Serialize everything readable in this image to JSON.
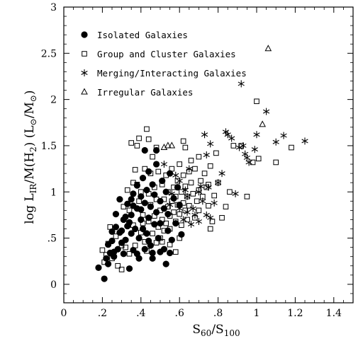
{
  "chart_data": {
    "type": "scatter",
    "title": "",
    "xlabel": "S60/S100",
    "ylabel": "log LIR/M(H2) (L⊙/M⊙)",
    "xlim": [
      0,
      1.5
    ],
    "ylim": [
      -0.2,
      3
    ],
    "x_ticks": [
      0,
      0.2,
      0.4,
      0.6,
      0.8,
      1,
      1.2,
      1.4
    ],
    "x_tick_labels": [
      "0",
      ".2",
      ".4",
      ".6",
      ".8",
      "1",
      "1.2",
      "1.4"
    ],
    "y_ticks": [
      0,
      0.5,
      1,
      1.5,
      2,
      2.5,
      3
    ],
    "y_tick_labels": [
      "0",
      ".5",
      "1",
      "1.5",
      "2",
      "2.5",
      "3"
    ],
    "grid": false,
    "legend_position": "top-left",
    "series": [
      {
        "name": "Isolated Galaxies",
        "marker": "filled-circle",
        "points": [
          [
            0.18,
            0.18
          ],
          [
            0.21,
            0.06
          ],
          [
            0.22,
            0.28
          ],
          [
            0.23,
            0.22
          ],
          [
            0.24,
            0.34
          ],
          [
            0.25,
            0.47
          ],
          [
            0.26,
            0.35
          ],
          [
            0.27,
            0.62
          ],
          [
            0.28,
            0.38
          ],
          [
            0.3,
            0.45
          ],
          [
            0.29,
            0.56
          ],
          [
            0.31,
            0.7
          ],
          [
            0.32,
            0.48
          ],
          [
            0.33,
            0.63
          ],
          [
            0.33,
            0.87
          ],
          [
            0.34,
            0.17
          ],
          [
            0.35,
            0.55
          ],
          [
            0.35,
            0.75
          ],
          [
            0.35,
            0.92
          ],
          [
            0.36,
            0.37
          ],
          [
            0.37,
            0.6
          ],
          [
            0.38,
            0.82
          ],
          [
            0.38,
            1.07
          ],
          [
            0.39,
            0.28
          ],
          [
            0.39,
            0.5
          ],
          [
            0.4,
            0.7
          ],
          [
            0.4,
            0.95
          ],
          [
            0.41,
            1.15
          ],
          [
            0.42,
            0.38
          ],
          [
            0.42,
            0.88
          ],
          [
            0.43,
            0.55
          ],
          [
            0.43,
            1.02
          ],
          [
            0.44,
            0.72
          ],
          [
            0.44,
            1.22
          ],
          [
            0.45,
            0.42
          ],
          [
            0.45,
            0.84
          ],
          [
            0.46,
            1.08
          ],
          [
            0.46,
            0.28
          ],
          [
            0.47,
            0.65
          ],
          [
            0.47,
            0.97
          ],
          [
            0.48,
            0.78
          ],
          [
            0.48,
            1.3
          ],
          [
            0.49,
            0.5
          ],
          [
            0.5,
            0.9
          ],
          [
            0.5,
            0.66
          ],
          [
            0.51,
            1.12
          ],
          [
            0.52,
            0.38
          ],
          [
            0.52,
            0.82
          ],
          [
            0.53,
            1.0
          ],
          [
            0.54,
            0.58
          ],
          [
            0.54,
            0.76
          ],
          [
            0.55,
            1.2
          ],
          [
            0.56,
            0.48
          ],
          [
            0.57,
            0.93
          ],
          [
            0.58,
            0.66
          ],
          [
            0.59,
            1.05
          ],
          [
            0.6,
            0.86
          ],
          [
            0.61,
            0.54
          ],
          [
            0.27,
            0.76
          ],
          [
            0.25,
            0.57
          ],
          [
            0.29,
            0.92
          ],
          [
            0.31,
            0.33
          ],
          [
            0.36,
            0.98
          ],
          [
            0.34,
            0.67
          ],
          [
            0.41,
            0.6
          ],
          [
            0.44,
            0.47
          ],
          [
            0.42,
            1.45
          ],
          [
            0.38,
            0.33
          ],
          [
            0.23,
            0.43
          ],
          [
            0.26,
            0.3
          ],
          [
            0.46,
            0.34
          ],
          [
            0.5,
            0.35
          ],
          [
            0.53,
            0.22
          ],
          [
            0.48,
            1.45
          ],
          [
            0.4,
            0.81
          ],
          [
            0.32,
            0.73
          ],
          [
            0.36,
            0.85
          ],
          [
            0.3,
            0.58
          ],
          [
            0.55,
            0.34
          ]
        ]
      },
      {
        "name": "Group and Cluster Galaxies",
        "marker": "open-square",
        "points": [
          [
            0.2,
            0.37
          ],
          [
            0.21,
            0.24
          ],
          [
            0.22,
            0.32
          ],
          [
            0.23,
            0.44
          ],
          [
            0.25,
            0.28
          ],
          [
            0.27,
            0.52
          ],
          [
            0.28,
            0.2
          ],
          [
            0.3,
            0.16
          ],
          [
            0.32,
            0.4
          ],
          [
            0.34,
            0.33
          ],
          [
            0.36,
            0.64
          ],
          [
            0.37,
            0.42
          ],
          [
            0.38,
            1.08
          ],
          [
            0.39,
            0.9
          ],
          [
            0.4,
            0.56
          ],
          [
            0.4,
            1.0
          ],
          [
            0.41,
            0.75
          ],
          [
            0.42,
            1.25
          ],
          [
            0.42,
            0.46
          ],
          [
            0.43,
            0.36
          ],
          [
            0.44,
            0.98
          ],
          [
            0.44,
            0.68
          ],
          [
            0.45,
            1.2
          ],
          [
            0.45,
            0.86
          ],
          [
            0.46,
            0.55
          ],
          [
            0.46,
            1.38
          ],
          [
            0.47,
            0.74
          ],
          [
            0.47,
            1.05
          ],
          [
            0.48,
            0.45
          ],
          [
            0.48,
            0.92
          ],
          [
            0.49,
            0.62
          ],
          [
            0.49,
            1.22
          ],
          [
            0.5,
            0.8
          ],
          [
            0.5,
            0.5
          ],
          [
            0.51,
            1.08
          ],
          [
            0.51,
            0.7
          ],
          [
            0.52,
            0.92
          ],
          [
            0.52,
            0.58
          ],
          [
            0.53,
            1.18
          ],
          [
            0.53,
            0.66
          ],
          [
            0.54,
            0.84
          ],
          [
            0.54,
            1.0
          ],
          [
            0.55,
            0.74
          ],
          [
            0.55,
            0.6
          ],
          [
            0.56,
            1.25
          ],
          [
            0.56,
            0.9
          ],
          [
            0.57,
            0.78
          ],
          [
            0.57,
            1.05
          ],
          [
            0.58,
            0.68
          ],
          [
            0.58,
            0.95
          ],
          [
            0.59,
            0.86
          ],
          [
            0.59,
            1.12
          ],
          [
            0.6,
            0.76
          ],
          [
            0.6,
            1.3
          ],
          [
            0.61,
            1.0
          ],
          [
            0.61,
            0.64
          ],
          [
            0.62,
            0.88
          ],
          [
            0.62,
            1.18
          ],
          [
            0.63,
            0.8
          ],
          [
            0.63,
            1.06
          ],
          [
            0.64,
            0.7
          ],
          [
            0.64,
            0.95
          ],
          [
            0.65,
            1.22
          ],
          [
            0.65,
            0.85
          ],
          [
            0.66,
            1.1
          ],
          [
            0.67,
            0.98
          ],
          [
            0.68,
            1.25
          ],
          [
            0.68,
            0.72
          ],
          [
            0.69,
            0.9
          ],
          [
            0.7,
            1.02
          ],
          [
            0.7,
            1.38
          ],
          [
            0.71,
            1.12
          ],
          [
            0.72,
            0.95
          ],
          [
            0.73,
            1.2
          ],
          [
            0.74,
            1.05
          ],
          [
            0.75,
            0.85
          ],
          [
            0.76,
            1.28
          ],
          [
            0.77,
            0.68
          ],
          [
            0.78,
            0.96
          ],
          [
            0.79,
            1.42
          ],
          [
            0.8,
            1.1
          ],
          [
            0.82,
            0.72
          ],
          [
            0.84,
            0.84
          ],
          [
            0.86,
            1.0
          ],
          [
            0.88,
            1.5
          ],
          [
            0.92,
            1.5
          ],
          [
            0.95,
            0.95
          ],
          [
            0.98,
            1.32
          ],
          [
            1.0,
            1.98
          ],
          [
            1.01,
            1.36
          ],
          [
            1.1,
            1.32
          ],
          [
            1.18,
            1.48
          ],
          [
            0.43,
            1.68
          ],
          [
            0.39,
            1.58
          ],
          [
            0.35,
            1.53
          ],
          [
            0.38,
            1.5
          ],
          [
            0.44,
            1.57
          ],
          [
            0.37,
            1.24
          ],
          [
            0.36,
            1.1
          ],
          [
            0.3,
            0.42
          ],
          [
            0.34,
            0.8
          ],
          [
            0.24,
            0.62
          ],
          [
            0.31,
            0.84
          ],
          [
            0.33,
            1.02
          ],
          [
            0.41,
            0.66
          ],
          [
            0.6,
            0.5
          ],
          [
            0.58,
            0.35
          ],
          [
            0.51,
            0.46
          ],
          [
            0.55,
            0.43
          ],
          [
            0.48,
            1.48
          ],
          [
            0.63,
            1.48
          ],
          [
            0.66,
            1.34
          ],
          [
            0.62,
            1.55
          ],
          [
            0.76,
            0.6
          ],
          [
            0.7,
            0.8
          ],
          [
            0.75,
            1.08
          ]
        ]
      },
      {
        "name": "Merging/Interacting Galaxies",
        "marker": "asterisk",
        "points": [
          [
            0.62,
            0.7
          ],
          [
            0.64,
            0.95
          ],
          [
            0.66,
            0.65
          ],
          [
            0.67,
            0.82
          ],
          [
            0.68,
            0.75
          ],
          [
            0.7,
            1.0
          ],
          [
            0.72,
            0.9
          ],
          [
            0.74,
            0.75
          ],
          [
            0.75,
            1.05
          ],
          [
            0.76,
            0.72
          ],
          [
            0.78,
            0.88
          ],
          [
            0.8,
            1.1
          ],
          [
            0.82,
            1.2
          ],
          [
            0.85,
            1.62
          ],
          [
            0.87,
            1.58
          ],
          [
            0.89,
            0.98
          ],
          [
            0.91,
            1.48
          ],
          [
            0.92,
            2.17
          ],
          [
            0.93,
            1.5
          ],
          [
            0.94,
            1.41
          ],
          [
            0.95,
            1.37
          ],
          [
            0.96,
            1.32
          ],
          [
            1.0,
            1.62
          ],
          [
            1.05,
            1.87
          ],
          [
            1.1,
            1.54
          ],
          [
            1.14,
            1.61
          ],
          [
            1.25,
            1.55
          ],
          [
            0.74,
            1.4
          ],
          [
            0.73,
            1.62
          ],
          [
            0.76,
            1.52
          ],
          [
            0.84,
            1.65
          ],
          [
            0.58,
            1.18
          ],
          [
            0.6,
            1.12
          ],
          [
            0.65,
            1.25
          ],
          [
            0.55,
            0.86
          ],
          [
            0.52,
            1.3
          ],
          [
            0.56,
            0.98
          ],
          [
            0.6,
            0.82
          ],
          [
            0.63,
            1.02
          ],
          [
            0.71,
            1.06
          ],
          [
            0.99,
            1.46
          ],
          [
            0.7,
            0.68
          ],
          [
            0.64,
            0.78
          ]
        ]
      },
      {
        "name": "Irregular Galaxies",
        "marker": "open-triangle",
        "points": [
          [
            1.06,
            2.55
          ],
          [
            1.03,
            1.73
          ],
          [
            0.52,
            1.48
          ],
          [
            0.56,
            1.5
          ],
          [
            0.54,
            1.5
          ]
        ]
      }
    ]
  }
}
